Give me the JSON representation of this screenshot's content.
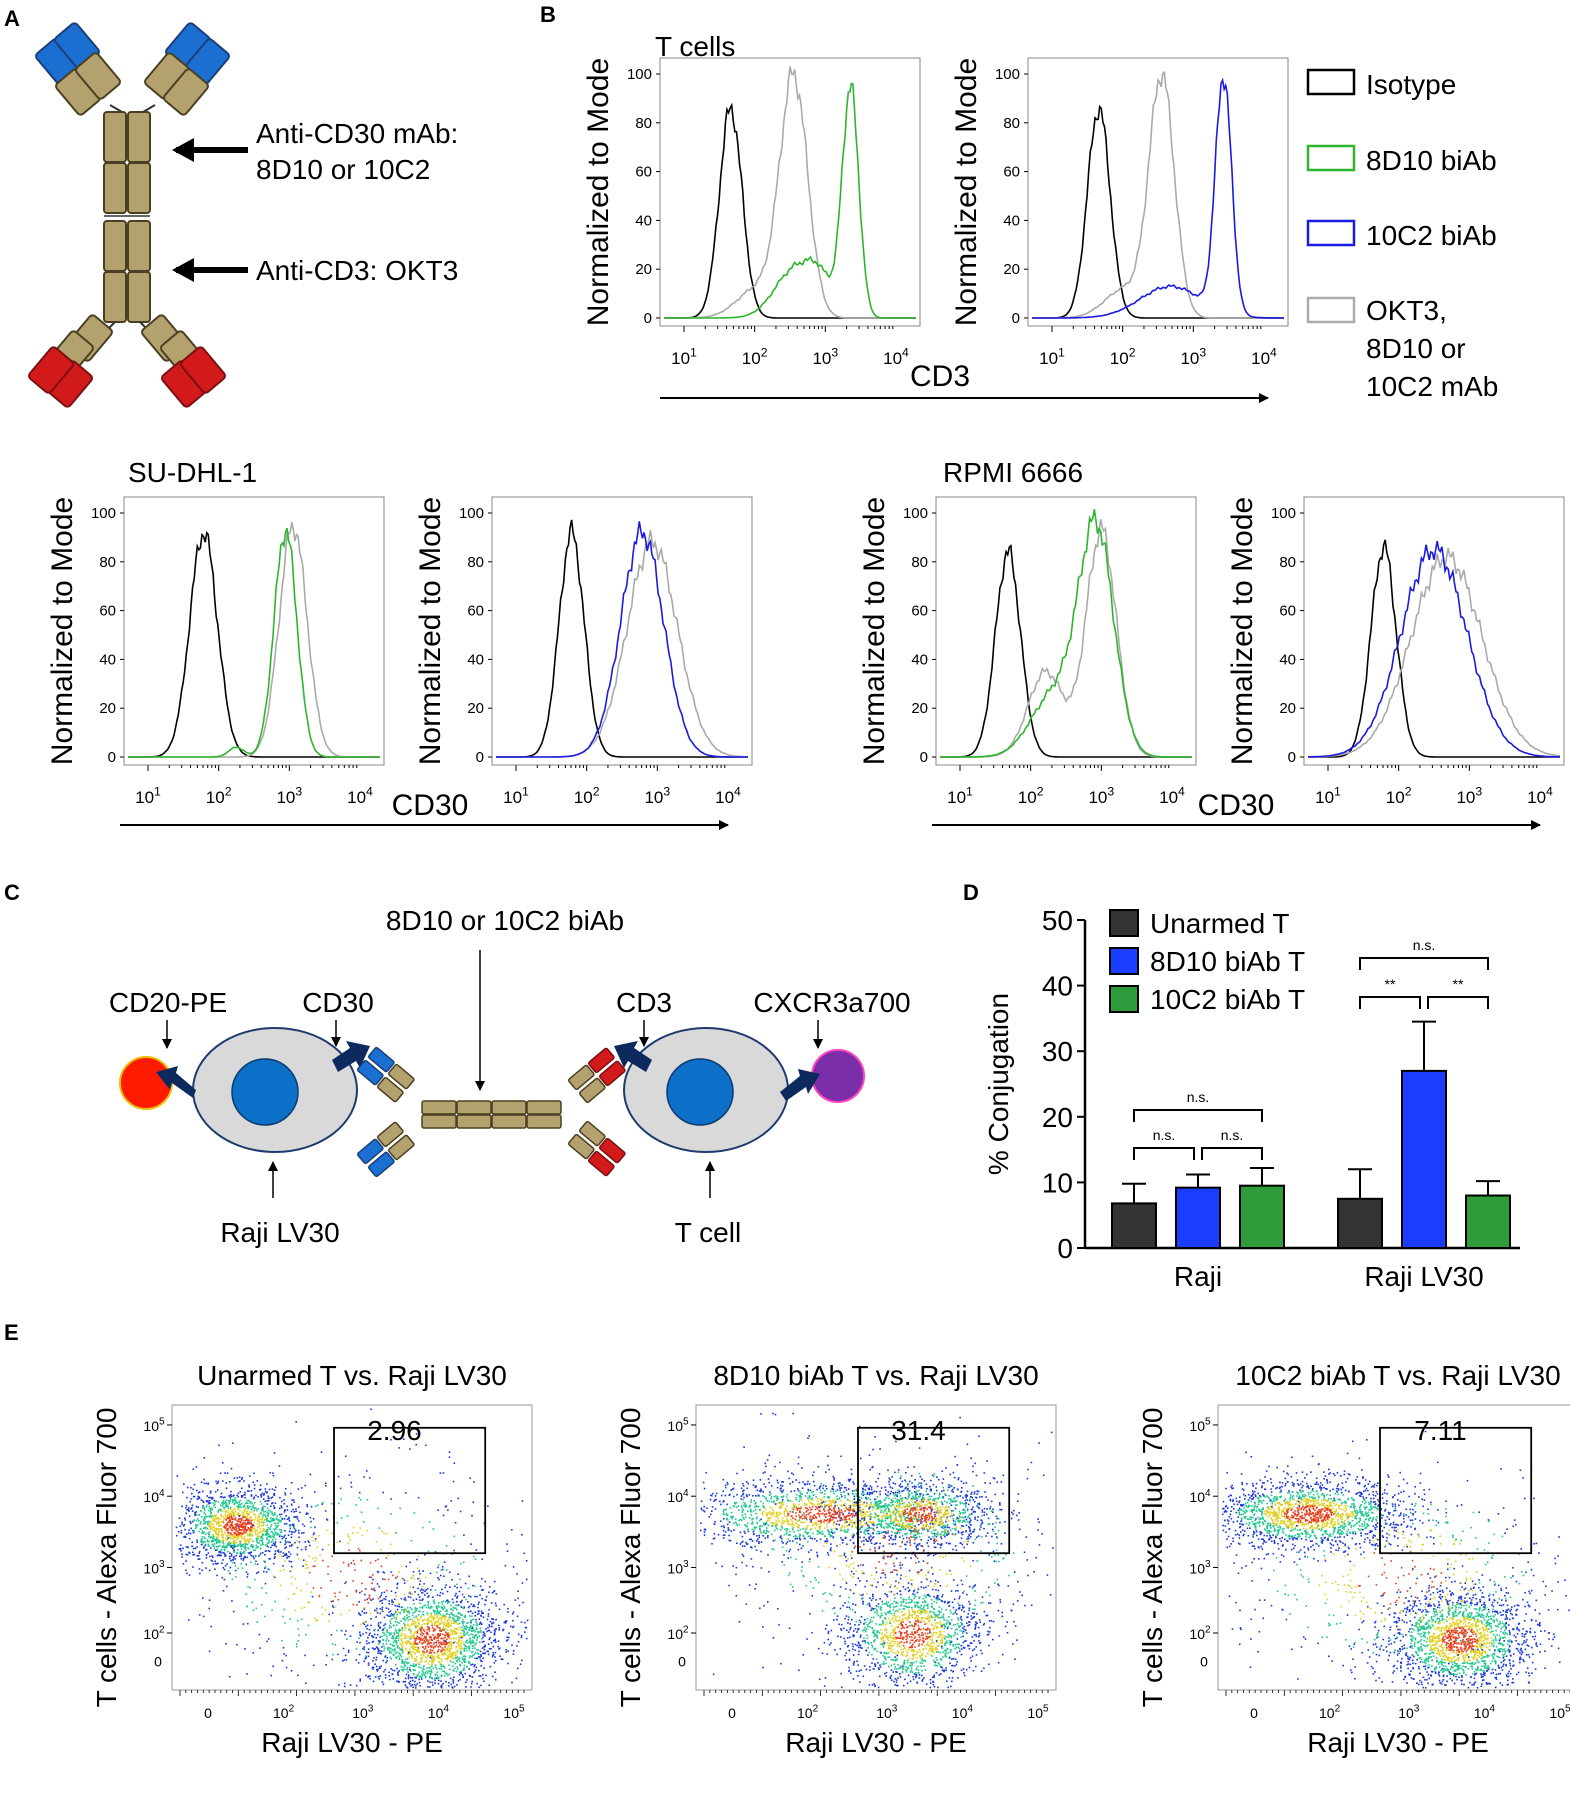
{
  "panels": {
    "a": "A",
    "b": "B",
    "c": "C",
    "d": "D",
    "e": "E"
  },
  "panel_a": {
    "arrow1_line1": "Anti-CD30 mAb:",
    "arrow1_line2": "8D10 or 10C2",
    "arrow2": "Anti-CD3: OKT3"
  },
  "panel_b": {
    "title_t": "T cells",
    "title_sudhl": "SU-DHL-1",
    "title_rpmi": "RPMI 6666",
    "ylabel": "Normalized to Mode",
    "xlabel_cd3": "CD3",
    "xlabel_cd30": "CD30",
    "yticks": [
      "0",
      "20",
      "40",
      "60",
      "80",
      "100"
    ],
    "xtick_base": "10",
    "xtick_exp": [
      "1",
      "2",
      "3",
      "4"
    ],
    "legend": [
      {
        "label": "Isotype",
        "color": "#000000"
      },
      {
        "label": "8D10 biAb",
        "color": "#2db52d"
      },
      {
        "label": "10C2 biAb",
        "color": "#1a1ae0"
      },
      {
        "label_lines": [
          "OKT3,",
          "8D10 or",
          "10C2 mAb"
        ],
        "color": "#aaaaaa"
      }
    ]
  },
  "panel_c": {
    "biab": "8D10 or 10C2 biAb",
    "cd20": "CD20-PE",
    "cd30": "CD30",
    "cd3": "CD3",
    "cxcr3": "CXCR3a700",
    "raji": "Raji LV30",
    "tcell": "T cell"
  },
  "chart_data": [
    {
      "type": "bar",
      "title": "D",
      "ylabel": "% Conjugation",
      "ylim": [
        0,
        50
      ],
      "yticks": [
        "0",
        "10",
        "20",
        "30",
        "40",
        "50"
      ],
      "categories": [
        "Raji",
        "Raji LV30"
      ],
      "series": [
        {
          "name": "Unarmed T",
          "color": "#333333",
          "values": [
            6.8,
            7.5
          ],
          "errors": [
            3.0,
            4.5
          ]
        },
        {
          "name": "8D10 biAb T",
          "color": "#1a3dff",
          "values": [
            9.2,
            27.0
          ],
          "errors": [
            2.0,
            7.5
          ]
        },
        {
          "name": "10C2 biAb T",
          "color": "#2e9c3a",
          "values": [
            9.5,
            8.0
          ],
          "errors": [
            2.7,
            2.2
          ]
        }
      ],
      "significance": [
        {
          "group": "Raji",
          "pair": "Unarmed-8D10",
          "label": "n.s."
        },
        {
          "group": "Raji",
          "pair": "8D10-10C2",
          "label": "n.s."
        },
        {
          "group": "Raji",
          "pair": "Unarmed-10C2",
          "label": "n.s."
        },
        {
          "group": "Raji LV30",
          "pair": "Unarmed-8D10",
          "label": "**"
        },
        {
          "group": "Raji LV30",
          "pair": "8D10-10C2",
          "label": "**"
        },
        {
          "group": "Raji LV30",
          "pair": "Unarmed-10C2",
          "label": "n.s."
        }
      ]
    }
  ],
  "panel_e": {
    "ylabel": "T cells - Alexa Fluor 700",
    "xlabel": "Raji LV30 - PE",
    "plots": [
      {
        "title": "Unarmed T vs. Raji LV30",
        "gate_value": "2.96"
      },
      {
        "title": "8D10 biAb T vs. Raji LV30",
        "gate_value": "31.4"
      },
      {
        "title": "10C2 biAb T vs. Raji LV30",
        "gate_value": "7.11"
      }
    ],
    "ytick_base": "10",
    "exp": [
      "2",
      "3",
      "4",
      "5"
    ],
    "zero": "0"
  }
}
